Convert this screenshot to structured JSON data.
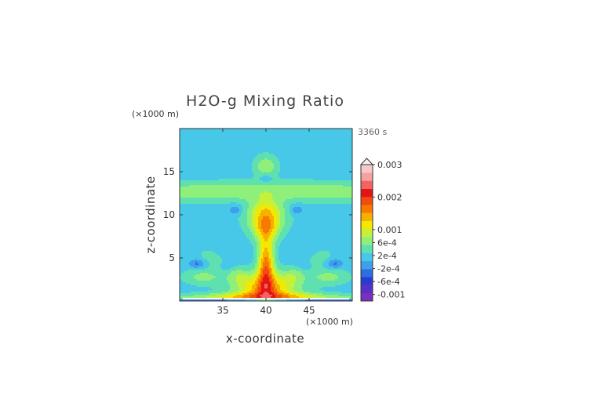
{
  "chart_data": {
    "type": "heatmap",
    "title": "H2O-g Mixing Ratio",
    "xlabel": "x-coordinate",
    "ylabel": "z-coordinate",
    "x_unit": "(×1000 m)",
    "y_unit": "(×1000 m)",
    "time_label": "3360 s",
    "xlim": [
      30,
      50
    ],
    "ylim": [
      0,
      20
    ],
    "x_ticks": [
      35,
      40,
      45
    ],
    "y_ticks": [
      5,
      10,
      15
    ],
    "grid": false,
    "legend": "right",
    "colorbar": {
      "levels": [
        "0.003",
        "0.002",
        "0.001",
        "6e-4",
        "2e-4",
        "-2e-4",
        "-6e-4",
        "-0.001"
      ],
      "level_values": [
        0.003,
        0.002,
        0.001,
        0.0006,
        0.0002,
        -0.0002,
        -0.0006,
        -0.001
      ],
      "vmin": -0.0012,
      "vmax": 0.003,
      "colors": [
        "#7b2fbe",
        "#5a2fc8",
        "#2a3cd0",
        "#2f6ee0",
        "#3da0ea",
        "#48c8e8",
        "#5ee0b0",
        "#8ef07a",
        "#c6f03a",
        "#f2e800",
        "#f7b000",
        "#f77a00",
        "#f24a10",
        "#e41414",
        "#f06464",
        "#f7a0a0",
        "#f8c8c8"
      ]
    },
    "features": [
      {
        "name": "central plume core",
        "x": 40,
        "z_range": [
          1,
          7
        ],
        "peak": 0.003
      },
      {
        "name": "surface outflow",
        "x_range": [
          31,
          49
        ],
        "z": 0.5,
        "value": 0.002
      },
      {
        "name": "upper anvil layer",
        "x_range": [
          30,
          50
        ],
        "z_range": [
          11.5,
          14
        ],
        "value": 0.0002
      },
      {
        "name": "overshooting top",
        "x": 40,
        "z": 16,
        "value": 0.0002
      }
    ]
  },
  "icons": {
    "colorbar_cap": "triangle-cap-icon"
  }
}
